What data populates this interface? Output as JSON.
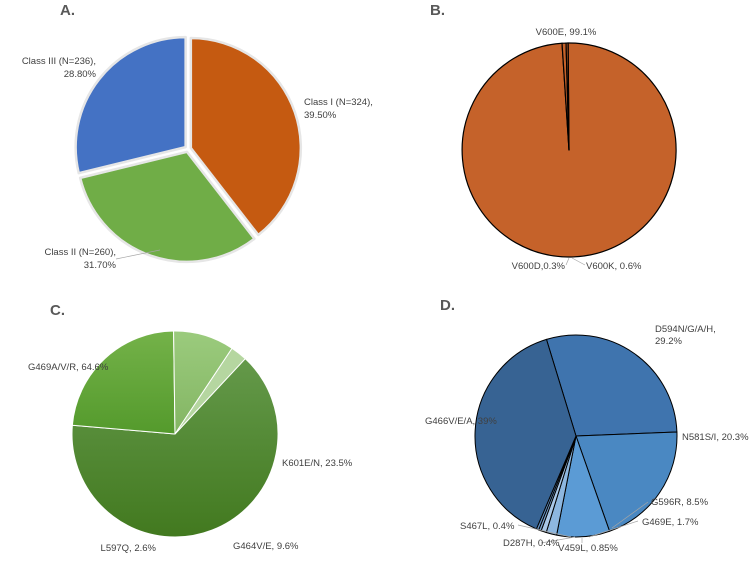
{
  "chart_data": [
    {
      "type": "pie",
      "panel_label": "A.",
      "slices": [
        {
          "label": [
            "Class I (N=324),",
            "39.50%"
          ],
          "value": 39.5,
          "color": "#C55A11"
        },
        {
          "label": [
            "Class II (N=260),",
            "31.70%"
          ],
          "value": 31.7,
          "color": "#70AD47"
        },
        {
          "label": [
            "Class III (N=236),",
            "28.80%"
          ],
          "value": 28.8,
          "color": "#4472C4"
        }
      ]
    },
    {
      "type": "pie",
      "panel_label": "B.",
      "slices": [
        {
          "label": [
            "V600E, 99.1%"
          ],
          "value": 99.1,
          "color": "#C5622A"
        },
        {
          "label": [
            "V600K, 0.6%"
          ],
          "value": 0.6,
          "color": "#C5622A"
        },
        {
          "label": [
            "V600D,0.3%"
          ],
          "value": 0.3,
          "color": "#C5622A"
        }
      ]
    },
    {
      "type": "pie",
      "panel_label": "C.",
      "slices": [
        {
          "label": [
            "G469A/V/R, 64.6%"
          ],
          "value": 64.6,
          "color": "#548235"
        },
        {
          "label": [
            "K601E/N, 23.5%"
          ],
          "value": 23.5,
          "color": "#6AAA3A"
        },
        {
          "label": [
            "G464V/E, 9.6%"
          ],
          "value": 9.6,
          "color": "#8FBF6E"
        },
        {
          "label": [
            "L597Q, 2.6%"
          ],
          "value": 2.6,
          "color": "#B5D6A0"
        }
      ]
    },
    {
      "type": "pie",
      "panel_label": "D.",
      "slices": [
        {
          "label": [
            "D594N/G/A/H,",
            "29.2%"
          ],
          "value": 29.2,
          "color": "#3F74AE"
        },
        {
          "label": [
            "N581S/I, 20.3%"
          ],
          "value": 20.3,
          "color": "#4A88C2"
        },
        {
          "label": [
            "G596R, 8.5%"
          ],
          "value": 8.5,
          "color": "#5B9BD5"
        },
        {
          "label": [
            "G469E, 1.7%"
          ],
          "value": 1.7,
          "color": "#8DB7E0"
        },
        {
          "label": [
            "V459L, 0.85%"
          ],
          "value": 0.85,
          "color": "#A9C8E8"
        },
        {
          "label": [
            "D287H, 0.4%"
          ],
          "value": 0.4,
          "color": "#7DA6D2"
        },
        {
          "label": [
            "S467L, 0.4%"
          ],
          "value": 0.4,
          "color": "#6593C5"
        },
        {
          "label": [
            "G466V/E/A, 39%"
          ],
          "value": 39,
          "color": "#376393"
        }
      ]
    }
  ]
}
